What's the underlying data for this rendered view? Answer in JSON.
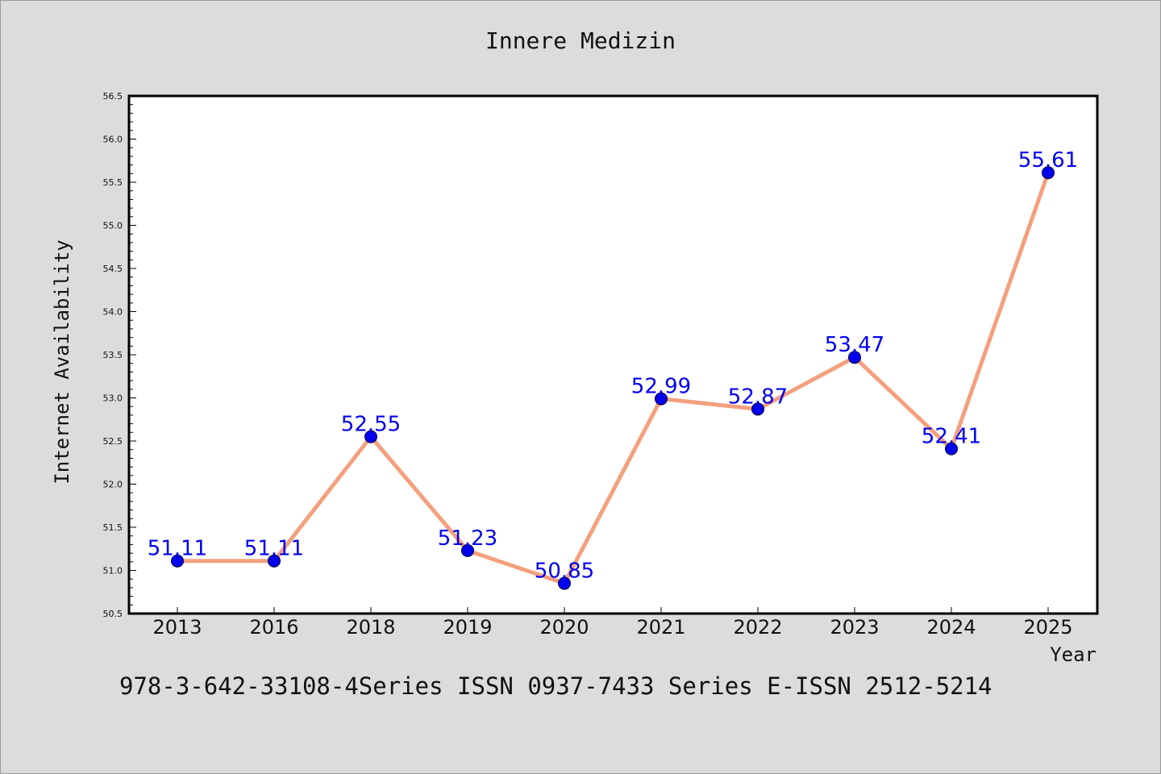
{
  "chart_data": {
    "type": "line",
    "title": "Innere Medizin",
    "xlabel": "Year",
    "ylabel": "Internet Availability",
    "categories": [
      "2013",
      "2016",
      "2018",
      "2019",
      "2020",
      "2021",
      "2022",
      "2023",
      "2024",
      "2025"
    ],
    "series": [
      {
        "values": [
          51.11,
          51.11,
          52.55,
          51.23,
          50.85,
          52.99,
          52.87,
          53.47,
          52.41,
          55.61
        ]
      }
    ],
    "data_labels": [
      "51.11",
      "51.11",
      "52.55",
      "51.23",
      "50.85",
      "52.99",
      "52.87",
      "53.47",
      "52.41",
      "55.61"
    ],
    "ylim": [
      50.5,
      56.5
    ],
    "yticks": [
      "50.5",
      "51.0",
      "51.5",
      "52.0",
      "52.5",
      "53.0",
      "53.5",
      "54.0",
      "54.5",
      "55.0",
      "55.5",
      "56.0",
      "56.5"
    ],
    "grid": false,
    "legend": "none",
    "colors": {
      "line": "#f4a07e",
      "marker": "#0000ee",
      "label": "#0000ee",
      "background": "#dcdcdc",
      "plot_background": "#ffffff"
    }
  },
  "footer": "978-3-642-33108-4Series ISSN 0937-7433 Series E-ISSN 2512-5214"
}
